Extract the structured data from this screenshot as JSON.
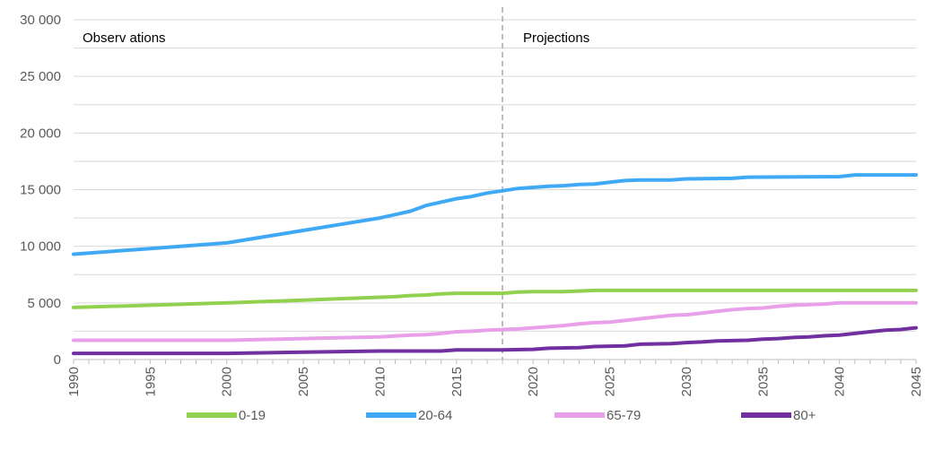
{
  "chart_data": {
    "type": "line",
    "title": "",
    "xlabel": "",
    "ylabel": "",
    "xlim": [
      1990,
      2045
    ],
    "ylim": [
      0,
      30000
    ],
    "y_ticks": [
      0,
      5000,
      10000,
      15000,
      20000,
      25000,
      30000
    ],
    "y_tick_labels": [
      "0",
      "5 000",
      "10 000",
      "15 000",
      "20 000",
      "25 000",
      "30 000"
    ],
    "x_tick_labels": [
      "1990",
      "1995",
      "2000",
      "2005",
      "2010",
      "2015",
      "2020",
      "2025",
      "2030",
      "2035",
      "2040",
      "2045"
    ],
    "grid": "horizontal",
    "legend_position": "bottom",
    "divider_year": 2018,
    "annotations": [
      "Observ ations",
      "Projections"
    ],
    "x": [
      1990,
      1995,
      2000,
      2005,
      2010,
      2012,
      2013,
      2014,
      2015,
      2016,
      2017,
      2018,
      2020,
      2022,
      2025,
      2030,
      2035,
      2040,
      2045
    ],
    "series": [
      {
        "name": "0-19",
        "color": "#92D050",
        "x": [
          1990,
          1995,
          2000,
          2005,
          2010,
          2011,
          2012,
          2013,
          2014,
          2015,
          2016,
          2017,
          2018,
          2019,
          2020,
          2021,
          2022,
          2023,
          2024,
          2025,
          2030,
          2035,
          2040,
          2045
        ],
        "values": [
          4600,
          4800,
          5000,
          5250,
          5500,
          5550,
          5650,
          5700,
          5800,
          5850,
          5850,
          5850,
          5850,
          5950,
          6000,
          6000,
          6000,
          6050,
          6100,
          6100,
          6100,
          6100,
          6100,
          6100
        ]
      },
      {
        "name": "20-64",
        "color": "#3FA9F5",
        "x": [
          1990,
          1995,
          2000,
          2005,
          2010,
          2011,
          2012,
          2013,
          2014,
          2015,
          2016,
          2017,
          2018,
          2019,
          2020,
          2021,
          2022,
          2023,
          2024,
          2025,
          2026,
          2027,
          2028,
          2029,
          2030,
          2033,
          2034,
          2040,
          2041,
          2045
        ],
        "values": [
          9300,
          9800,
          10300,
          11400,
          12500,
          12800,
          13100,
          13600,
          13900,
          14200,
          14400,
          14700,
          14900,
          15100,
          15200,
          15300,
          15350,
          15450,
          15500,
          15650,
          15800,
          15850,
          15850,
          15850,
          15950,
          16000,
          16100,
          16150,
          16300,
          16300
        ]
      },
      {
        "name": "65-79",
        "color": "#E8A0E8",
        "x": [
          1990,
          1995,
          2000,
          2005,
          2010,
          2012,
          2013,
          2014,
          2015,
          2016,
          2017,
          2018,
          2019,
          2020,
          2021,
          2022,
          2023,
          2024,
          2025,
          2026,
          2027,
          2028,
          2029,
          2030,
          2031,
          2032,
          2033,
          2034,
          2035,
          2036,
          2037,
          2038,
          2039,
          2040,
          2045
        ],
        "values": [
          1700,
          1700,
          1700,
          1850,
          2000,
          2150,
          2200,
          2300,
          2450,
          2500,
          2600,
          2650,
          2700,
          2800,
          2900,
          3000,
          3150,
          3250,
          3300,
          3450,
          3600,
          3750,
          3900,
          3950,
          4100,
          4250,
          4400,
          4500,
          4550,
          4700,
          4800,
          4850,
          4900,
          5000,
          5000
        ]
      },
      {
        "name": "80+",
        "color": "#7030A0",
        "x": [
          1990,
          1995,
          2000,
          2005,
          2010,
          2014,
          2015,
          2018,
          2020,
          2021,
          2023,
          2024,
          2026,
          2027,
          2029,
          2030,
          2031,
          2032,
          2034,
          2035,
          2036,
          2037,
          2038,
          2039,
          2040,
          2041,
          2042,
          2043,
          2044,
          2045
        ],
        "values": [
          550,
          550,
          550,
          650,
          750,
          750,
          850,
          850,
          900,
          1000,
          1050,
          1150,
          1200,
          1350,
          1400,
          1500,
          1550,
          1650,
          1700,
          1800,
          1850,
          1950,
          2000,
          2100,
          2150,
          2300,
          2450,
          2600,
          2650,
          2800
        ]
      }
    ]
  }
}
